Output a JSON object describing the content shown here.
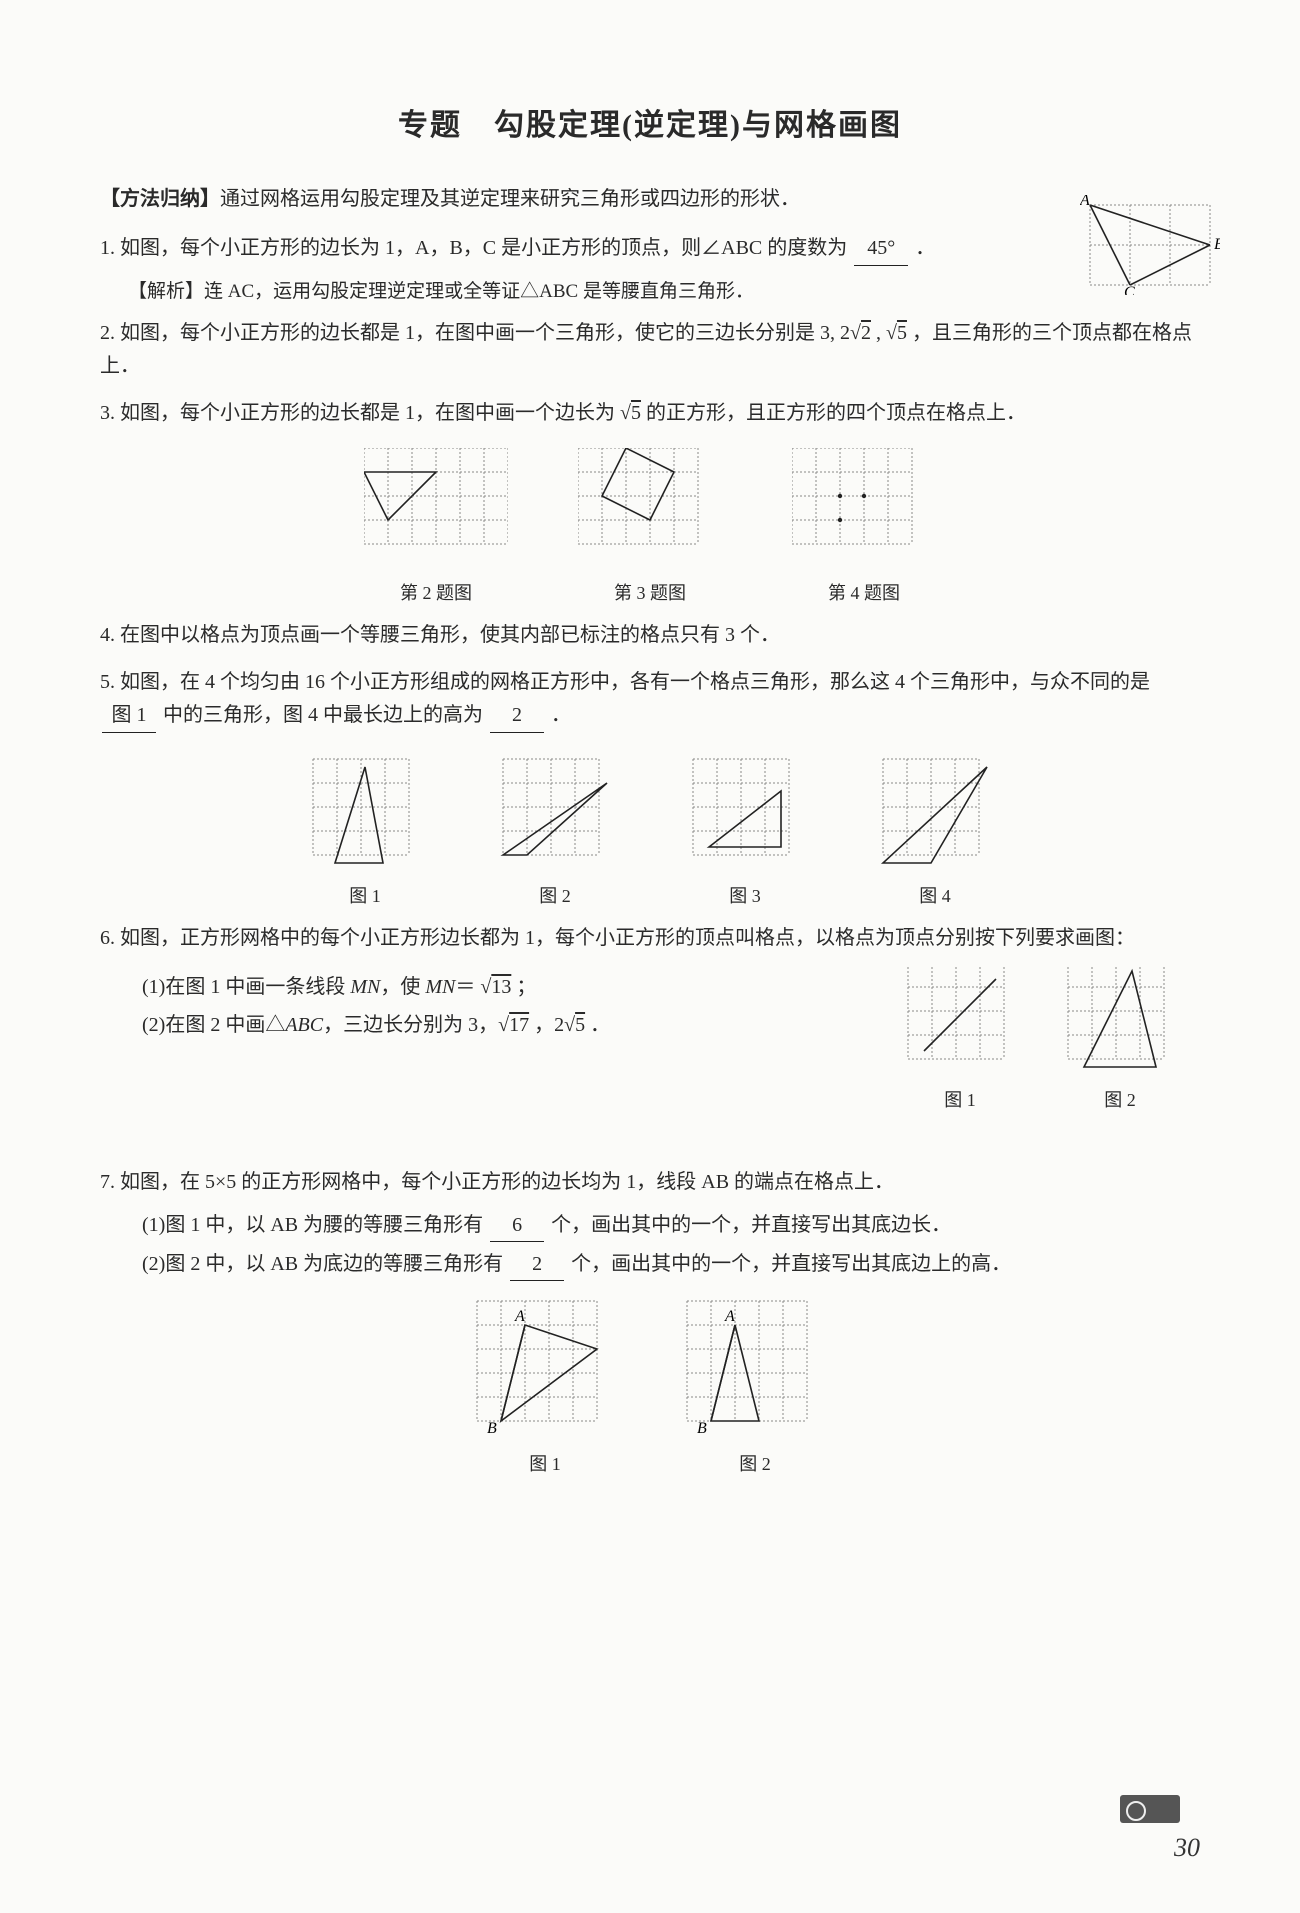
{
  "title": "专题　勾股定理(逆定理)与网格画图",
  "method_label": "【方法归纳】",
  "method_text": "通过网格运用勾股定理及其逆定理来研究三角形或四边形的形状．",
  "q1": {
    "num": "1.",
    "text1": "如图，每个小正方形的边长为 1，A，B，C 是小正方形的顶点，则∠ABC 的度数为",
    "blank": "45°",
    "text2": "．",
    "analysis": "【解析】连 AC，运用勾股定理逆定理或全等证△ABC 是等腰直角三角形．"
  },
  "q2": {
    "num": "2.",
    "text": "如图，每个小正方形的边长都是 1，在图中画一个三角形，使它的三边长分别是 3, 2√2 , √5 ，且三角形的三个顶点都在格点上．",
    "cap": "第 2 题图"
  },
  "q3": {
    "num": "3.",
    "text": "如图，每个小正方形的边长都是 1，在图中画一个边长为 √5 的正方形，且正方形的四个顶点在格点上．",
    "cap": "第 3 题图"
  },
  "q4": {
    "num": "4.",
    "text": "在图中以格点为顶点画一个等腰三角形，使其内部已标注的格点只有 3 个．",
    "cap": "第 4 题图"
  },
  "q5": {
    "num": "5.",
    "text1": "如图，在 4 个均匀由 16 个小正方形组成的网格正方形中，各有一个格点三角形，那么这 4 个三角形中，与众不同的是",
    "blank1": "图 1",
    "text2": "中的三角形，图 4 中最长边上的高为",
    "blank2": "2",
    "text3": "．",
    "caps": [
      "图 1",
      "图 2",
      "图 3",
      "图 4"
    ]
  },
  "q6": {
    "num": "6.",
    "text": "如图，正方形网格中的每个小正方形边长都为 1，每个小正方形的顶点叫格点，以格点为顶点分别按下列要求画图：",
    "sub1": "(1)在图 1 中画一条线段 MN，使 MN＝ √13 ；",
    "sub2": "(2)在图 2 中画△ABC，三边长分别为 3，√17 ，2√5 ．",
    "caps": [
      "图 1",
      "图 2"
    ]
  },
  "q7": {
    "num": "7.",
    "text": "如图，在 5×5 的正方形网格中，每个小正方形的边长均为 1，线段 AB 的端点在格点上．",
    "sub1a": "(1)图 1 中，以 AB 为腰的等腰三角形有",
    "sub1blank": "6",
    "sub1b": "个，画出其中的一个，并直接写出其底边长．",
    "sub2a": "(2)图 2 中，以 AB 为底边的等腰三角形有",
    "sub2blank": "2",
    "sub2b": "个，画出其中的一个，并直接写出其底边上的高．",
    "caps": [
      "图 1",
      "图 2"
    ]
  },
  "pagenum": "30",
  "gridcolor": "#888",
  "linecolor": "#222",
  "cellsize": 24
}
